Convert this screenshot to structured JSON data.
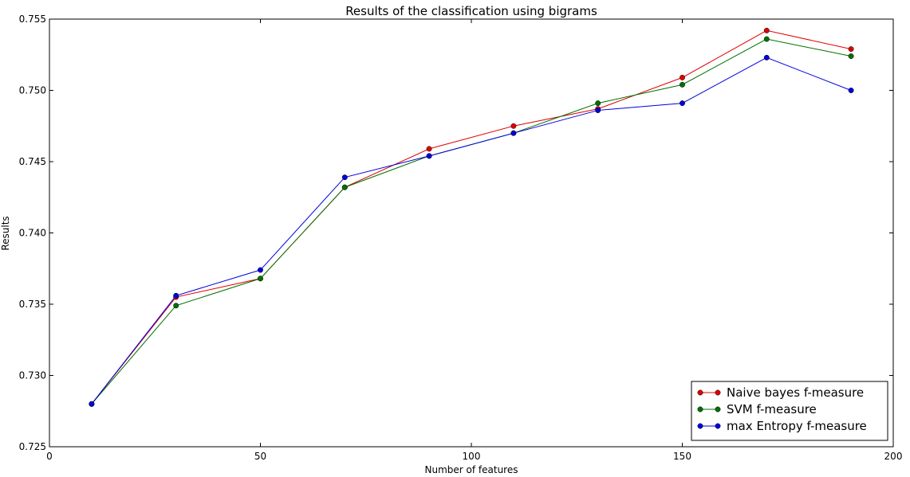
{
  "chart_data": {
    "type": "line",
    "title": "Results of the classification using bigrams",
    "xlabel": "Number of features",
    "ylabel": "Results",
    "xlim": [
      0,
      200
    ],
    "ylim": [
      0.725,
      0.755
    ],
    "xticks": [
      0,
      50,
      100,
      150,
      200
    ],
    "xtick_labels": [
      "0",
      "50",
      "100",
      "150",
      "200"
    ],
    "yticks": [
      0.725,
      0.73,
      0.735,
      0.74,
      0.745,
      0.75,
      0.755
    ],
    "ytick_labels": [
      "0.725",
      "0.730",
      "0.735",
      "0.740",
      "0.745",
      "0.750",
      "0.755"
    ],
    "grid": false,
    "legend_position": "bottom-right",
    "x": [
      10,
      30,
      50,
      70,
      90,
      110,
      130,
      150,
      170,
      190
    ],
    "series": [
      {
        "name": "Naive bayes f-measure",
        "color": "#e00000",
        "values": [
          0.728,
          0.7355,
          0.7368,
          0.7432,
          0.7459,
          0.7475,
          0.7487,
          0.7509,
          0.7542,
          0.7529
        ]
      },
      {
        "name": "SVM f-measure",
        "color": "#007000",
        "values": [
          0.728,
          0.7349,
          0.7368,
          0.7432,
          0.7454,
          0.747,
          0.7491,
          0.7504,
          0.7536,
          0.7524
        ]
      },
      {
        "name": "max Entropy f-measure",
        "color": "#0000e0",
        "values": [
          0.728,
          0.7356,
          0.7374,
          0.7439,
          0.7454,
          0.747,
          0.7486,
          0.7491,
          0.7523,
          0.75
        ]
      }
    ]
  }
}
